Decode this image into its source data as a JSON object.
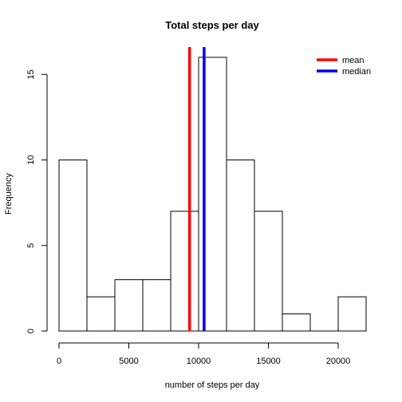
{
  "chart_data": {
    "type": "bar",
    "title": "Total steps per day",
    "xlabel": "number of steps per day",
    "ylabel": "Frequency",
    "bin_edges": [
      0,
      2000,
      4000,
      6000,
      8000,
      10000,
      12000,
      14000,
      16000,
      18000,
      20000,
      22000
    ],
    "values": [
      10,
      2,
      3,
      3,
      7,
      16,
      10,
      7,
      1,
      0,
      2
    ],
    "xlim": [
      0,
      22000
    ],
    "ylim": [
      0,
      16.6
    ],
    "xticks": [
      0,
      5000,
      10000,
      15000,
      20000
    ],
    "yticks": [
      0,
      5,
      10,
      15
    ],
    "vlines": [
      {
        "name": "mean",
        "value": 9354,
        "color": "#ff0000"
      },
      {
        "name": "median",
        "value": 10395,
        "color": "#0000ff"
      }
    ],
    "legend": {
      "position": "top-right",
      "entries": [
        "mean",
        "median"
      ]
    },
    "grid": false
  }
}
